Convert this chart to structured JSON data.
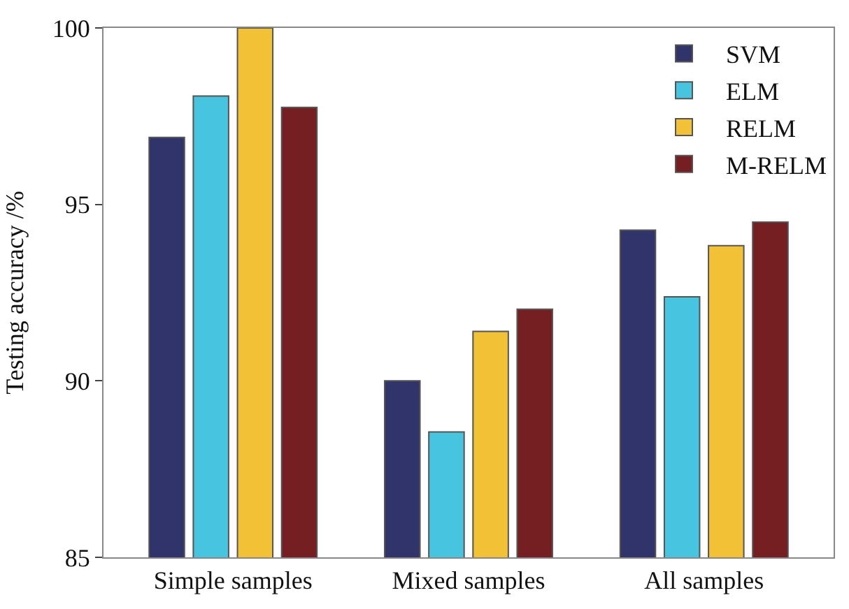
{
  "chart_data": {
    "type": "bar",
    "ylabel": "Testing accuracy /%",
    "categories": [
      "Simple samples",
      "Mixed samples",
      "All samples"
    ],
    "series": [
      {
        "name": "SVM",
        "color": "#31346b",
        "values": [
          96.9,
          90.0,
          94.27
        ]
      },
      {
        "name": "ELM",
        "color": "#47c4df",
        "values": [
          98.07,
          88.55,
          92.38
        ]
      },
      {
        "name": "RELM",
        "color": "#f2c136",
        "values": [
          100.0,
          91.4,
          93.83
        ]
      },
      {
        "name": "M-RELM",
        "color": "#761f22",
        "values": [
          97.75,
          92.03,
          94.5
        ]
      }
    ],
    "ylim": [
      85,
      100
    ],
    "yticks": [
      85,
      90,
      95,
      100
    ],
    "grid": false,
    "legend": "top right"
  }
}
